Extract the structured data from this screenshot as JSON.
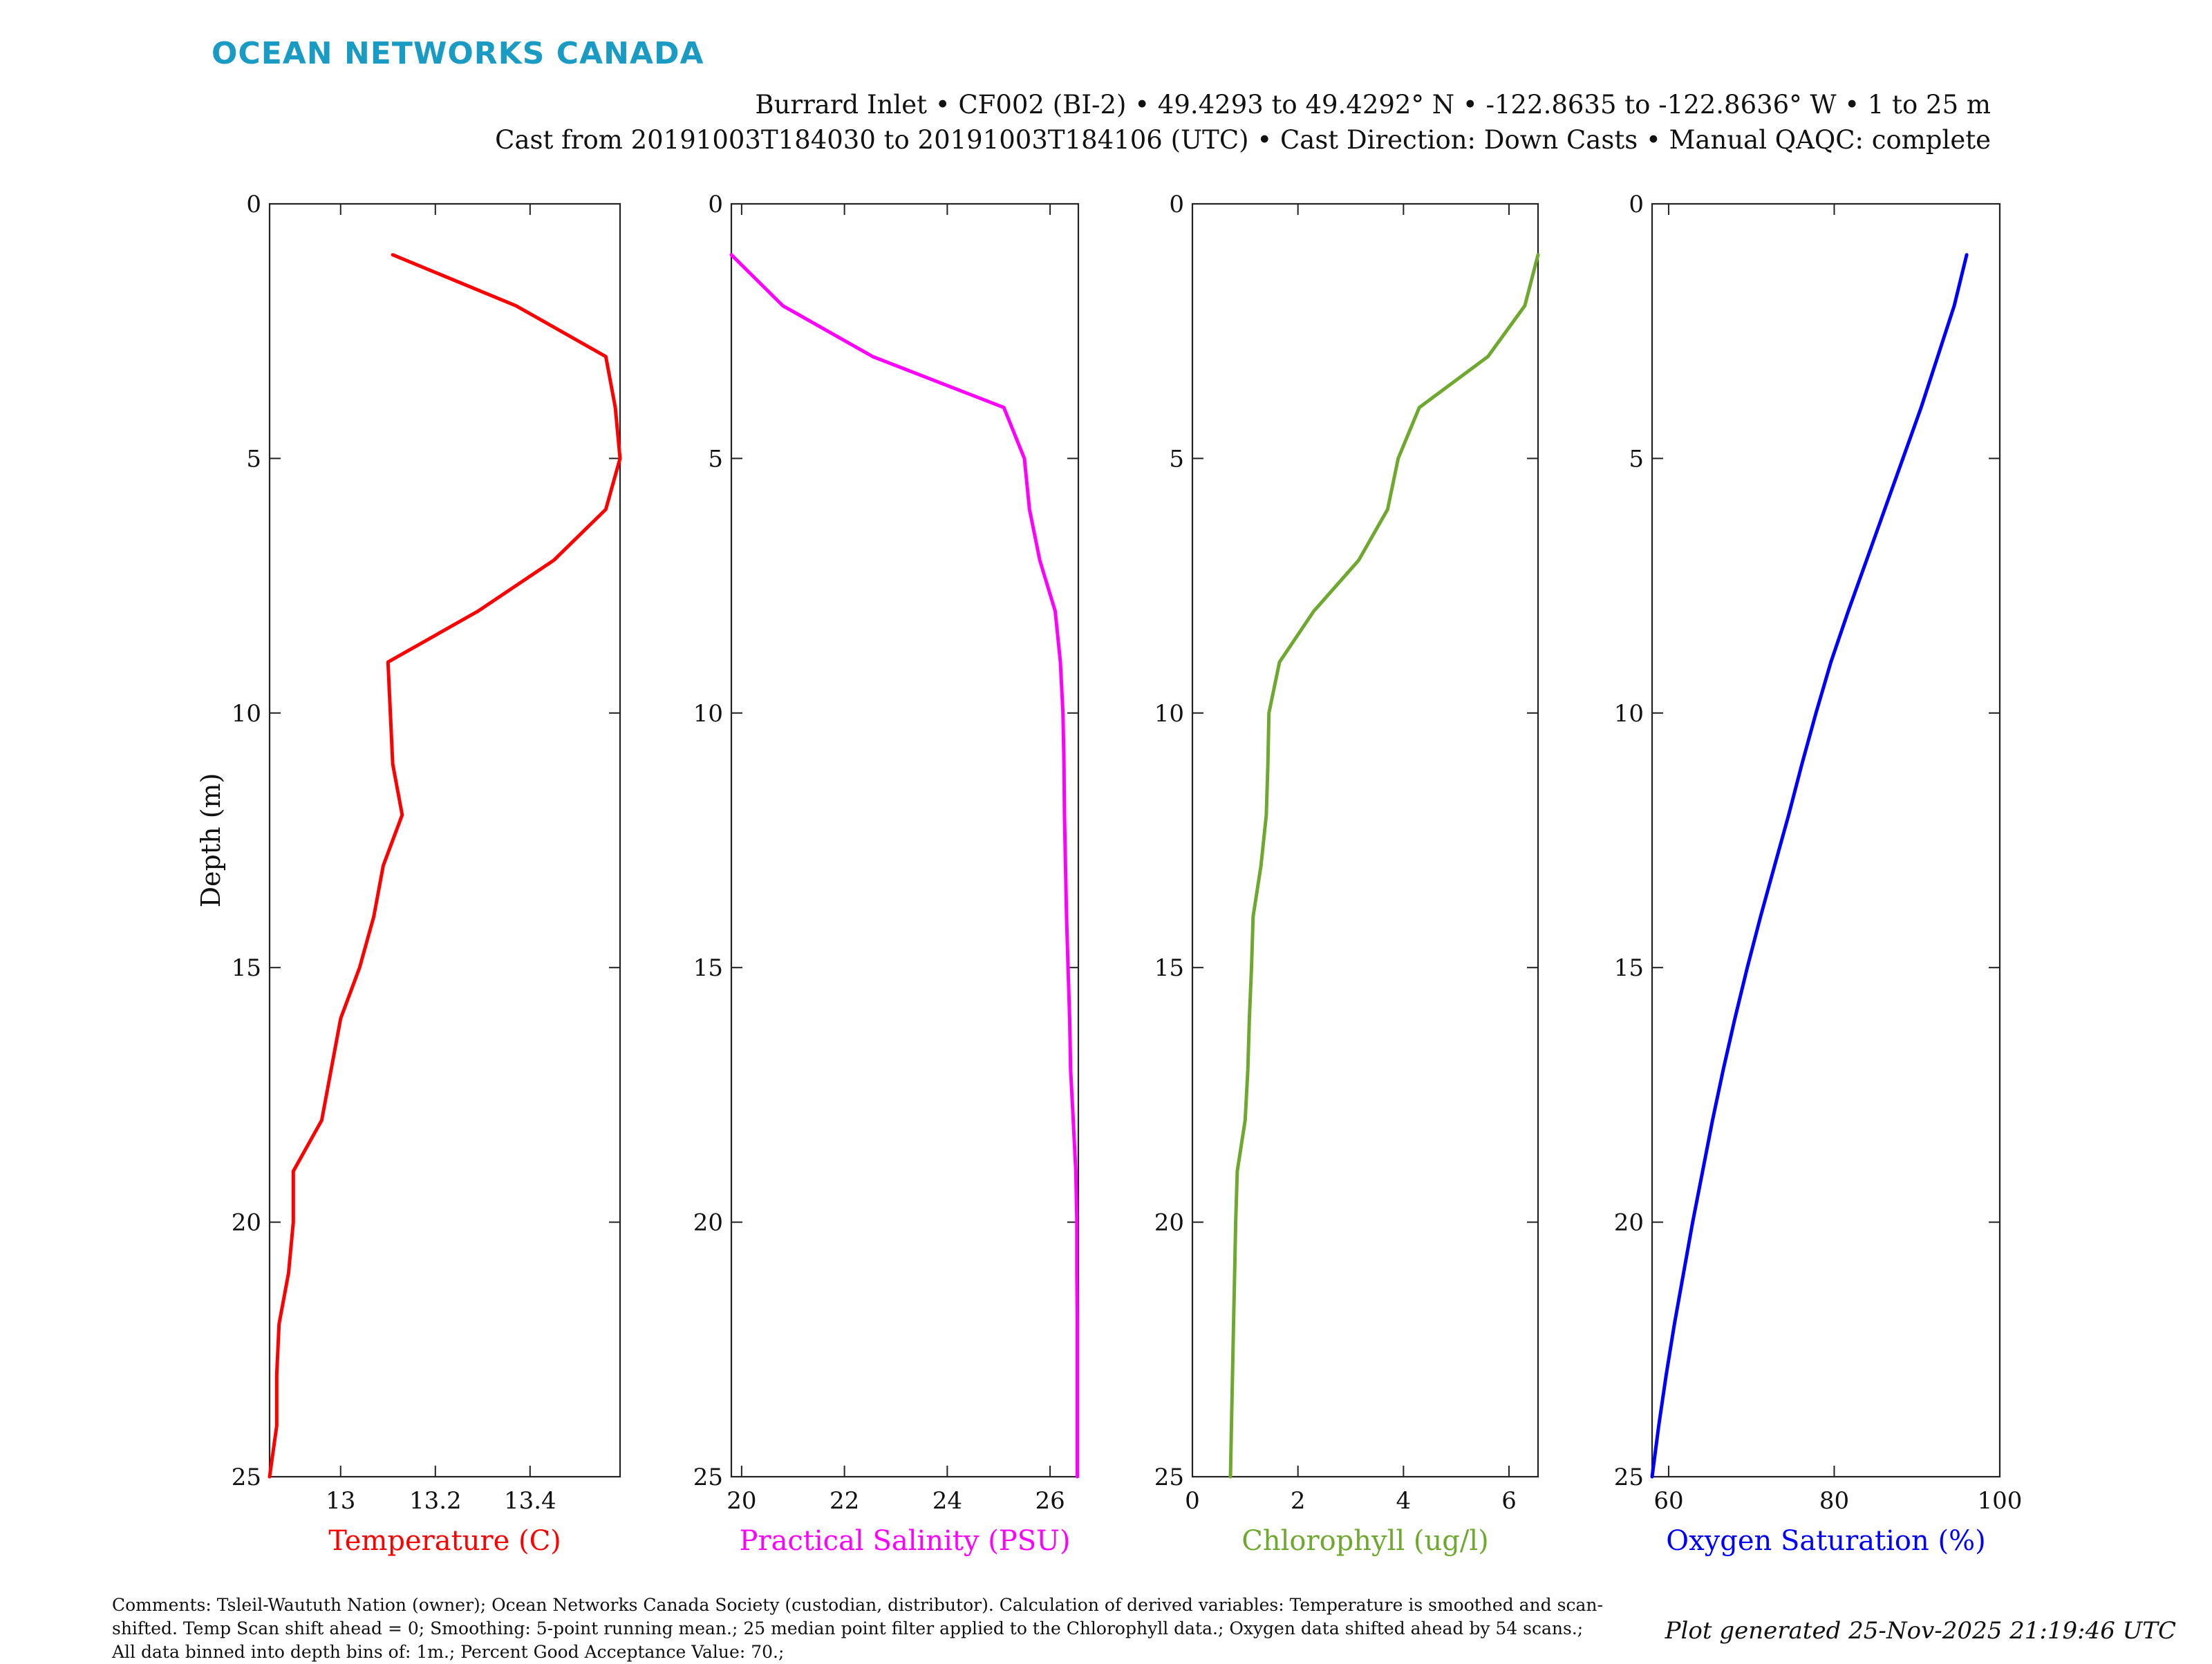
{
  "brand": {
    "name": "OCEAN NETWORKS CANADA",
    "color": "#1a9bc3"
  },
  "header": {
    "line1": "Burrard Inlet • CF002 (BI-2) • 49.4293 to 49.4292° N • -122.8635 to -122.8636° W • 1 to 25 m",
    "line2": "Cast from 20191003T184030 to 20191003T184106 (UTC) • Cast Direction: Down Casts • Manual QAQC: complete"
  },
  "footer": {
    "comments": "Comments: Tsleil-Waututh Nation (owner); Ocean Networks Canada Society (custodian, distributor). Calculation of derived variables: Temperature is smoothed and scan-shifted. Temp Scan shift ahead = 0; Smoothing: 5-point running mean.; 25 median point filter applied to the Chlorophyll data.; Oxygen data shifted ahead by 54 scans.; All data binned into depth bins of: 1m.; Percent Good Acceptance Value: 70.;",
    "generated": "Plot generated 25-Nov-2025 21:19:46 UTC"
  },
  "chart_data": [
    {
      "type": "line",
      "ylabel": "Depth (m)",
      "ylim": [
        0,
        25
      ],
      "yreversed": true,
      "yticks": [
        0,
        5,
        10,
        15,
        20,
        25
      ],
      "xlabel": "Temperature (C)",
      "xlim": [
        12.85,
        13.59
      ],
      "xticks": [
        13,
        13.2,
        13.4
      ],
      "xtick_labels": [
        "13",
        "13.2",
        "13.4"
      ],
      "color": "#ff0000",
      "depth": [
        1,
        2,
        3,
        4,
        5,
        6,
        7,
        8,
        9,
        10,
        11,
        12,
        13,
        14,
        15,
        16,
        17,
        18,
        19,
        20,
        21,
        22,
        23,
        24,
        25
      ],
      "values": [
        13.11,
        13.37,
        13.56,
        13.58,
        13.59,
        13.56,
        13.45,
        13.29,
        13.1,
        13.105,
        13.11,
        13.13,
        13.09,
        13.07,
        13.04,
        13.0,
        12.98,
        12.96,
        12.9,
        12.9,
        12.89,
        12.87,
        12.865,
        12.865,
        12.85
      ]
    },
    {
      "type": "line",
      "ylabel": "",
      "ylim": [
        0,
        25
      ],
      "yreversed": true,
      "yticks": [
        0,
        5,
        10,
        15,
        20,
        25
      ],
      "xlabel": "Practical Salinity (PSU)",
      "xlim": [
        19.8,
        26.55
      ],
      "xticks": [
        20,
        22,
        24,
        26
      ],
      "xtick_labels": [
        "20",
        "22",
        "24",
        "26"
      ],
      "color": "#ff00ff",
      "depth": [
        1,
        2,
        3,
        4,
        5,
        6,
        7,
        8,
        9,
        10,
        11,
        12,
        13,
        14,
        15,
        16,
        17,
        18,
        19,
        20,
        21,
        22,
        23,
        24,
        25
      ],
      "values": [
        19.8,
        20.8,
        22.55,
        25.1,
        25.5,
        25.6,
        25.8,
        26.1,
        26.2,
        26.25,
        26.27,
        26.28,
        26.3,
        26.32,
        26.35,
        26.38,
        26.4,
        26.45,
        26.5,
        26.52,
        26.52,
        26.53,
        26.53,
        26.53,
        26.53
      ]
    },
    {
      "type": "line",
      "ylabel": "",
      "ylim": [
        0,
        25
      ],
      "yreversed": true,
      "yticks": [
        0,
        5,
        10,
        15,
        20,
        25
      ],
      "xlabel": "Chlorophyll (ug/l)",
      "xlim": [
        0,
        6.55
      ],
      "xticks": [
        0,
        2,
        4,
        6
      ],
      "xtick_labels": [
        "0",
        "2",
        "4",
        "6"
      ],
      "color": "#6fa82f",
      "depth": [
        1,
        2,
        3,
        4,
        5,
        6,
        7,
        8,
        9,
        10,
        11,
        12,
        13,
        14,
        15,
        16,
        17,
        18,
        19,
        20,
        21,
        22,
        23,
        24,
        25
      ],
      "values": [
        6.55,
        6.3,
        5.6,
        4.3,
        3.9,
        3.7,
        3.15,
        2.3,
        1.65,
        1.45,
        1.43,
        1.4,
        1.3,
        1.15,
        1.12,
        1.08,
        1.05,
        1.0,
        0.85,
        0.82,
        0.8,
        0.78,
        0.76,
        0.74,
        0.72
      ]
    },
    {
      "type": "line",
      "ylabel": "",
      "ylim": [
        0,
        25
      ],
      "yreversed": true,
      "yticks": [
        0,
        5,
        10,
        15,
        20,
        25
      ],
      "xlabel": "Oxygen Saturation (%)",
      "xlim": [
        58,
        100
      ],
      "xticks": [
        60,
        80,
        100
      ],
      "xtick_labels": [
        "60",
        "80",
        "100"
      ],
      "color": "#0000ff",
      "depth": [
        1,
        2,
        3,
        4,
        5,
        6,
        7,
        8,
        9,
        10,
        11,
        12,
        13,
        14,
        15,
        16,
        17,
        18,
        19,
        20,
        21,
        22,
        23,
        24,
        25
      ],
      "values": [
        96,
        94.5,
        92.5,
        90.5,
        88.3,
        86.1,
        83.9,
        81.7,
        79.6,
        77.8,
        76.1,
        74.5,
        72.8,
        71.1,
        69.5,
        68.0,
        66.6,
        65.3,
        64.1,
        62.9,
        61.8,
        60.7,
        59.7,
        58.8,
        58.0
      ]
    }
  ]
}
